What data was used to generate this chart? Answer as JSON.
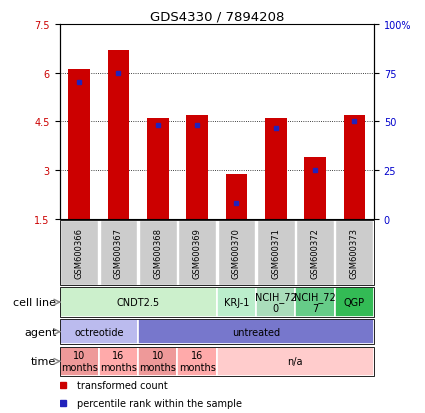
{
  "title": "GDS4330 / 7894208",
  "samples": [
    "GSM600366",
    "GSM600367",
    "GSM600368",
    "GSM600369",
    "GSM600370",
    "GSM600371",
    "GSM600372",
    "GSM600373"
  ],
  "bar_values": [
    6.1,
    6.7,
    4.6,
    4.7,
    2.9,
    4.6,
    3.4,
    4.7
  ],
  "percentile_values": [
    5.7,
    6.0,
    4.4,
    4.4,
    2.0,
    4.3,
    3.0,
    4.5
  ],
  "ylim_left": [
    1.5,
    7.5
  ],
  "yticks_left": [
    1.5,
    3.0,
    4.5,
    6.0,
    7.5
  ],
  "ytick_labels_left": [
    "1.5",
    "3",
    "4.5",
    "6",
    "7.5"
  ],
  "yticks_right_vals": [
    1.5,
    3.0,
    4.5,
    6.0,
    7.5
  ],
  "ytick_labels_right": [
    "0",
    "25",
    "50",
    "75",
    "100%"
  ],
  "bar_color": "#CC0000",
  "percentile_color": "#2222BB",
  "bar_width": 0.55,
  "sample_box_color": "#cccccc",
  "cell_line_groups": [
    {
      "label": "CNDT2.5",
      "start": 0,
      "end": 4,
      "color": "#ccf0cc"
    },
    {
      "label": "KRJ-1",
      "start": 4,
      "end": 5,
      "color": "#bbeecc"
    },
    {
      "label": "NCIH_72\n0",
      "start": 5,
      "end": 6,
      "color": "#aaddbb"
    },
    {
      "label": "NCIH_72\n7",
      "start": 6,
      "end": 7,
      "color": "#66cc88"
    },
    {
      "label": "QGP",
      "start": 7,
      "end": 8,
      "color": "#33bb55"
    }
  ],
  "agent_groups": [
    {
      "label": "octreotide",
      "start": 0,
      "end": 2,
      "color": "#bbbbee"
    },
    {
      "label": "untreated",
      "start": 2,
      "end": 8,
      "color": "#7777cc"
    }
  ],
  "time_groups": [
    {
      "label": "10\nmonths",
      "start": 0,
      "end": 1,
      "color": "#ee9999"
    },
    {
      "label": "16\nmonths",
      "start": 1,
      "end": 2,
      "color": "#ffaaaa"
    },
    {
      "label": "10\nmonths",
      "start": 2,
      "end": 3,
      "color": "#ee9999"
    },
    {
      "label": "16\nmonths",
      "start": 3,
      "end": 4,
      "color": "#ffaaaa"
    },
    {
      "label": "n/a",
      "start": 4,
      "end": 8,
      "color": "#ffcccc"
    }
  ],
  "legend_items": [
    {
      "label": "transformed count",
      "color": "#CC0000"
    },
    {
      "label": "percentile rank within the sample",
      "color": "#2222BB"
    }
  ],
  "row_labels": [
    "cell line",
    "agent",
    "time"
  ],
  "row_label_fontsize": 8,
  "tick_fontsize": 7,
  "annotation_fontsize": 7,
  "sample_fontsize": 6
}
